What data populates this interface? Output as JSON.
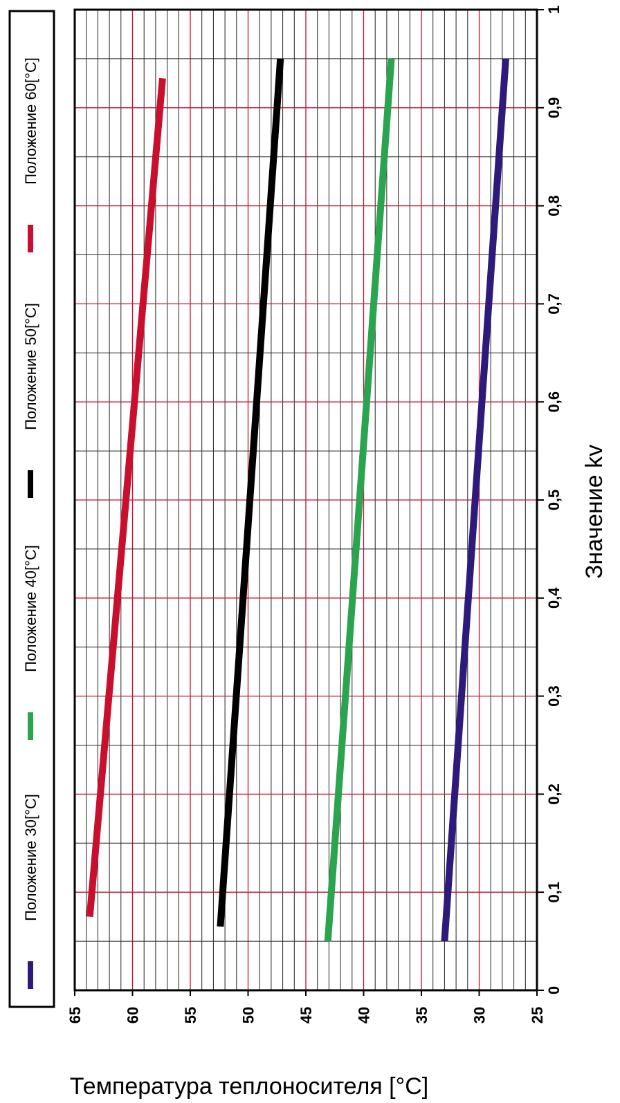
{
  "chart_data": {
    "type": "line",
    "orientation": "rotated-90",
    "xlabel": "Значение kv",
    "ylabel": "Температура теплоносителя [°C]",
    "xlim": [
      0,
      1
    ],
    "ylim": [
      25,
      65
    ],
    "x_ticks": [
      "0",
      "0,1",
      "0,2",
      "0,3",
      "0,4",
      "0,5",
      "0,6",
      "0,7",
      "0,8",
      "0,9",
      "1"
    ],
    "y_ticks": [
      "65",
      "60",
      "55",
      "50",
      "45",
      "40",
      "35",
      "30",
      "25"
    ],
    "grid": true,
    "legend_placement": "left",
    "series": [
      {
        "name": "Положение 30[°C]",
        "color": "#2e1a7a",
        "points": [
          [
            0.05,
            33.0
          ],
          [
            0.95,
            27.7
          ]
        ]
      },
      {
        "name": "Положение 40[°C]",
        "color": "#2aa44f",
        "points": [
          [
            0.05,
            43.1
          ],
          [
            0.95,
            37.6
          ]
        ]
      },
      {
        "name": "Положение 50[°C]",
        "color": "#000000",
        "points": [
          [
            0.065,
            52.4
          ],
          [
            0.95,
            47.2
          ]
        ]
      },
      {
        "name": "Положение 60[°C]",
        "color": "#c8102e",
        "points": [
          [
            0.075,
            63.7
          ],
          [
            0.93,
            57.4
          ]
        ]
      }
    ]
  }
}
